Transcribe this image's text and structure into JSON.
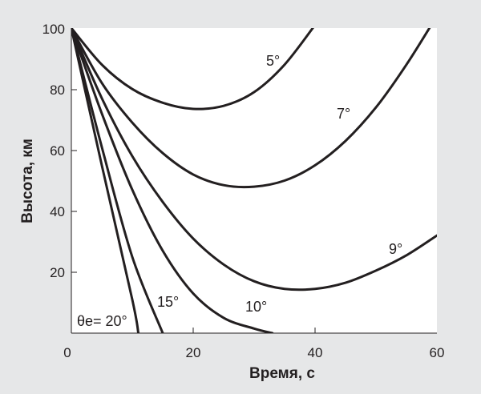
{
  "chart_data": {
    "type": "line",
    "xlabel": "Время, с",
    "ylabel": "Высота, км",
    "xlim": [
      0,
      60
    ],
    "ylim": [
      0,
      100
    ],
    "xticks": [
      "0",
      "20",
      "40",
      "60"
    ],
    "yticks": [
      "20",
      "40",
      "60",
      "80",
      "100"
    ],
    "grid": false,
    "legend": "none",
    "series": [
      {
        "name": "5°",
        "x": [
          0,
          5,
          10,
          15,
          20,
          25,
          30,
          35,
          40
        ],
        "y": [
          100,
          88,
          80,
          75.5,
          73.5,
          74.5,
          79,
          88,
          101
        ]
      },
      {
        "name": "7°",
        "x": [
          0,
          5,
          10,
          15,
          20,
          25,
          30,
          35,
          40,
          45,
          50,
          55,
          60
        ],
        "y": [
          100,
          82,
          69,
          59,
          52,
          48.5,
          48,
          50,
          55,
          63,
          74,
          88,
          104
        ]
      },
      {
        "name": "9°",
        "x": [
          0,
          5,
          10,
          15,
          20,
          25,
          30,
          35,
          40,
          45,
          50,
          55,
          60
        ],
        "y": [
          100,
          77,
          58,
          43,
          31,
          22.5,
          17,
          14.5,
          14.5,
          16.5,
          20.5,
          25.5,
          32
        ]
      },
      {
        "name": "10°",
        "x": [
          0,
          5,
          10,
          15,
          20,
          25,
          30,
          33
        ],
        "y": [
          100,
          72,
          47,
          27,
          13,
          5,
          1.5,
          0
        ]
      },
      {
        "name": "15°",
        "x": [
          0,
          5,
          10,
          15
        ],
        "y": [
          100,
          61,
          25,
          0
        ]
      },
      {
        "name": "θe= 20°",
        "x": [
          0,
          5,
          10,
          11
        ],
        "y": [
          100,
          55,
          11,
          0
        ]
      }
    ]
  }
}
